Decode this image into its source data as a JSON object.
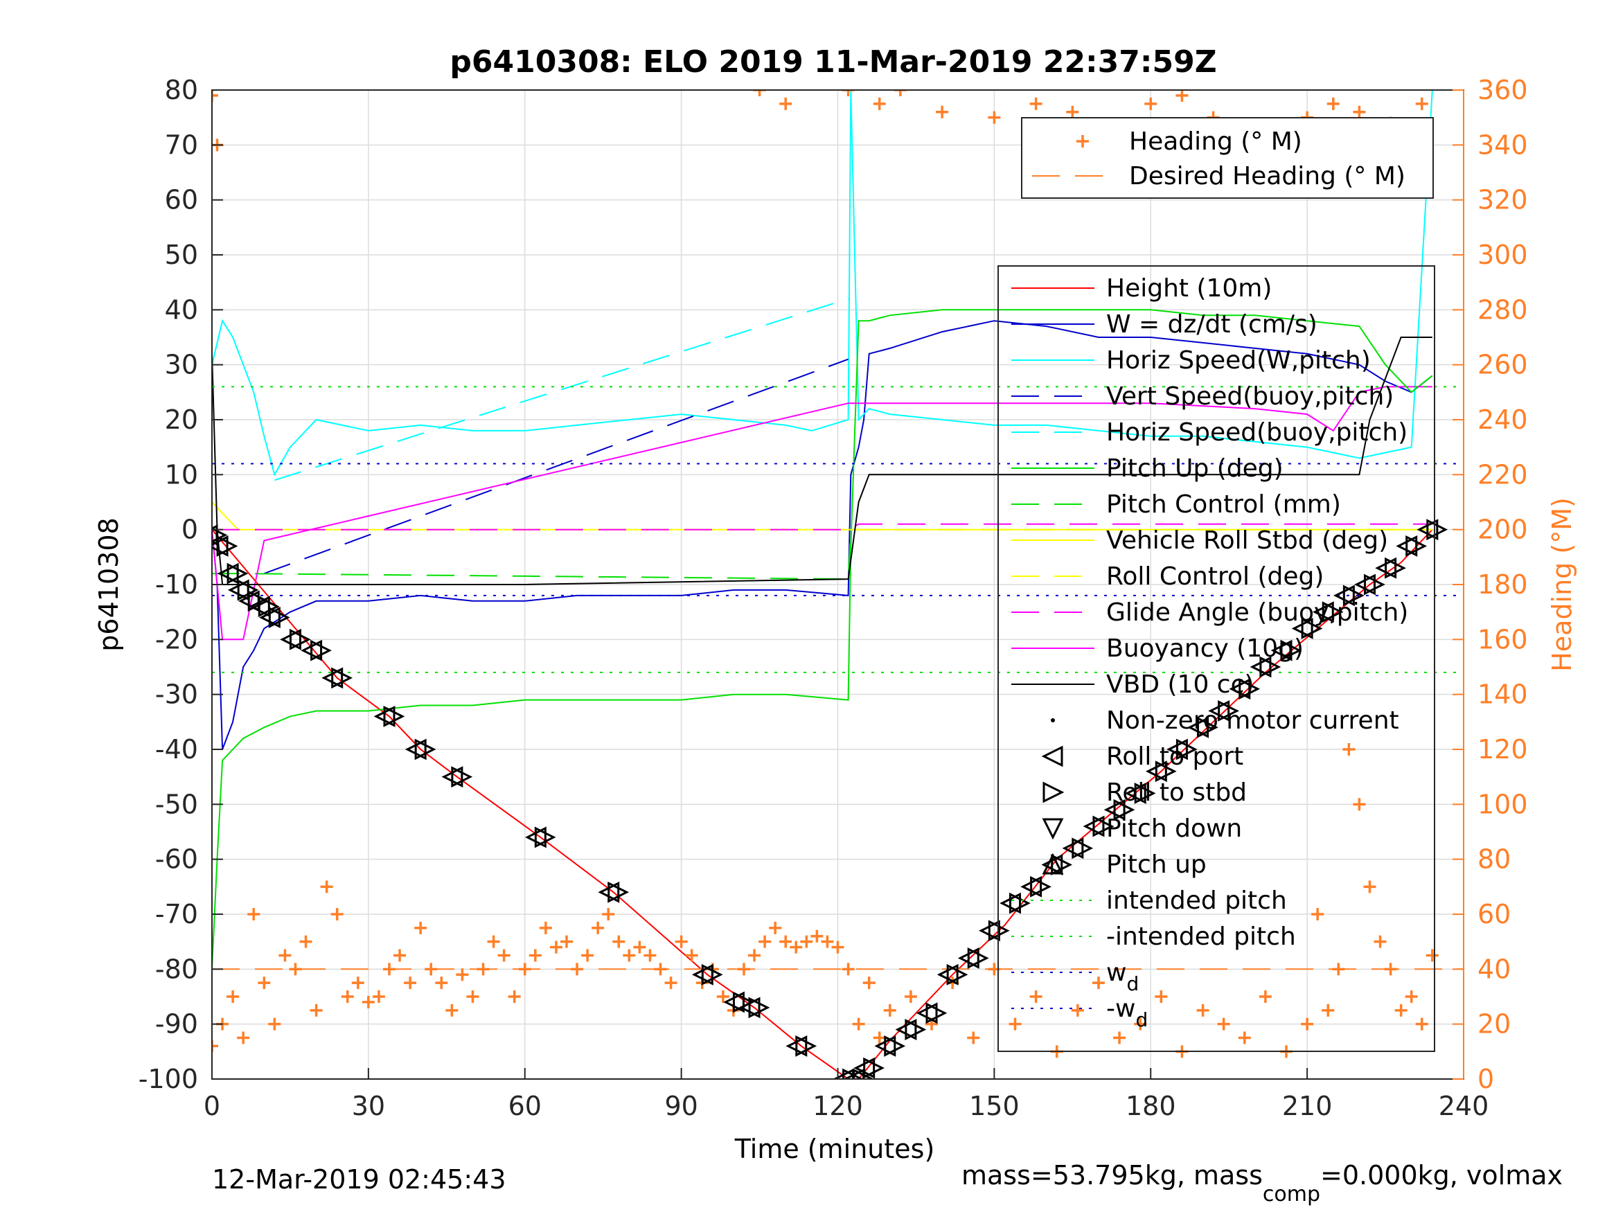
{
  "chart_data": {
    "type": "line",
    "title": "p6410308: ELO 2019 11-Mar-2019 22:37:59Z",
    "xlabel": "Time (minutes)",
    "ylabel": "p6410308",
    "y2label": "Heading (°M)",
    "xlim": [
      0,
      240
    ],
    "ylim": [
      -100,
      80
    ],
    "y2lim": [
      0,
      360
    ],
    "xticks": [
      "0",
      "30",
      "60",
      "90",
      "120",
      "150",
      "180",
      "210",
      "240"
    ],
    "yticks": [
      "80",
      "70",
      "60",
      "50",
      "40",
      "30",
      "20",
      "10",
      "0",
      "-10",
      "-20",
      "-30",
      "-40",
      "-50",
      "-60",
      "-70",
      "-80",
      "-90",
      "-100"
    ],
    "y2ticks": [
      "360",
      "340",
      "320",
      "300",
      "280",
      "260",
      "240",
      "220",
      "200",
      "180",
      "160",
      "140",
      "120",
      "100",
      "80",
      "60",
      "40",
      "20",
      "0"
    ],
    "grid": true,
    "legend_heading": [
      {
        "name": "Heading (° M)",
        "color": "#ff7f27",
        "style": "plus"
      },
      {
        "name": "Desired Heading (° M)",
        "color": "#ff7f27",
        "style": "dashed"
      }
    ],
    "legend": [
      {
        "name": "Height (10m)",
        "color": "#ff0000",
        "style": "solid"
      },
      {
        "name": "W = dz/dt (cm/s)",
        "color": "#0000cc",
        "style": "solid"
      },
      {
        "name": "Horiz Speed(W,pitch)",
        "color": "#00ffff",
        "style": "solid"
      },
      {
        "name": "Vert Speed(buoy,pitch)",
        "color": "#0000cc",
        "style": "dashed"
      },
      {
        "name": "Horiz Speed(buoy,pitch)",
        "color": "#00ffff",
        "style": "dashed"
      },
      {
        "name": "Pitch Up (deg)",
        "color": "#00e000",
        "style": "solid"
      },
      {
        "name": "Pitch Control (mm)",
        "color": "#00e000",
        "style": "dashed"
      },
      {
        "name": "Vehicle Roll Stbd (deg)",
        "color": "#ffff00",
        "style": "solid"
      },
      {
        "name": "Roll Control (deg)",
        "color": "#ffff00",
        "style": "dashed"
      },
      {
        "name": "Glide Angle (buoy,pitch)",
        "color": "#ff00ff",
        "style": "dashed"
      },
      {
        "name": "Buoyancy (10g)",
        "color": "#ff00ff",
        "style": "solid"
      },
      {
        "name": "VBD (10 cc)",
        "color": "#000000",
        "style": "solid"
      },
      {
        "name": "Non-zero motor current",
        "color": "#000000",
        "style": "dot"
      },
      {
        "name": "Roll to port",
        "color": "#000000",
        "style": "tri-left"
      },
      {
        "name": "Roll to stbd",
        "color": "#000000",
        "style": "tri-right"
      },
      {
        "name": "Pitch down",
        "color": "#000000",
        "style": "tri-down"
      },
      {
        "name": "Pitch up",
        "color": "#000000",
        "style": "tri-up"
      },
      {
        "name": "intended pitch",
        "color": "#00e000",
        "style": "dotted"
      },
      {
        "name": "-intended pitch",
        "color": "#00e000",
        "style": "dotted"
      },
      {
        "name_main": "w",
        "name_sub": "d",
        "color": "#0000cc",
        "style": "dotted"
      },
      {
        "name_main": "-w",
        "name_sub": "d",
        "color": "#0000cc",
        "style": "dotted"
      }
    ],
    "series": [
      {
        "name": "Height (10m)",
        "x": [
          0,
          24,
          34,
          40,
          47,
          63,
          77,
          95,
          104,
          113,
          122,
          124,
          130,
          142,
          152,
          162,
          172,
          182,
          192,
          202,
          212,
          222,
          228,
          234
        ],
        "y": [
          0,
          -27,
          -34,
          -40,
          -45,
          -56,
          -66,
          -81,
          -87,
          -94,
          -100,
          -100,
          -93,
          -81,
          -72,
          -60,
          -52,
          -44,
          -35,
          -26,
          -18,
          -10,
          -6,
          0
        ]
      },
      {
        "name": "W = dz/dt (cm/s)",
        "x": [
          0,
          1,
          2,
          4,
          6,
          8,
          10,
          15,
          20,
          30,
          40,
          50,
          60,
          70,
          80,
          90,
          100,
          110,
          122,
          122.5,
          124,
          125,
          126,
          130,
          140,
          150,
          160,
          170,
          180,
          190,
          200,
          210,
          220,
          225,
          230,
          234
        ],
        "y": [
          0,
          -10,
          -40,
          -35,
          -25,
          -22,
          -18,
          -15,
          -13,
          -13,
          -12,
          -13,
          -13,
          -12,
          -12,
          -12,
          -11,
          -11,
          -12,
          10,
          15,
          20,
          32,
          33,
          36,
          38,
          37,
          35,
          35,
          34,
          33,
          32,
          30,
          27,
          25,
          28
        ]
      },
      {
        "name": "Horiz Speed(W,pitch)",
        "x": [
          0,
          2,
          4,
          6,
          8,
          10,
          12,
          15,
          20,
          30,
          40,
          50,
          60,
          70,
          80,
          90,
          100,
          110,
          115,
          122,
          122.5,
          124,
          126,
          130,
          140,
          150,
          160,
          170,
          180,
          190,
          200,
          210,
          220,
          225,
          230,
          234
        ],
        "y": [
          30,
          38,
          35,
          30,
          25,
          17,
          10,
          15,
          20,
          18,
          19,
          18,
          18,
          19,
          20,
          21,
          20,
          19,
          18,
          20,
          80,
          20,
          22,
          21,
          20,
          19,
          19,
          18,
          17,
          17,
          16,
          15,
          13,
          14,
          15,
          80
        ]
      },
      {
        "name": "Vert Speed(buoy,pitch)",
        "x": [
          10,
          122
        ],
        "y": [
          -8,
          31
        ]
      },
      {
        "name": "Horiz Speed(buoy,pitch)",
        "x": [
          12,
          122
        ],
        "y": [
          9,
          42
        ]
      },
      {
        "name": "Pitch Up (deg)",
        "x": [
          0,
          1,
          2,
          4,
          6,
          8,
          10,
          15,
          20,
          30,
          40,
          50,
          60,
          70,
          80,
          90,
          100,
          110,
          122,
          122.5,
          124,
          126,
          130,
          140,
          150,
          160,
          170,
          180,
          190,
          200,
          210,
          220,
          225,
          230,
          234
        ],
        "y": [
          -80,
          -60,
          -42,
          -40,
          -38,
          -37,
          -36,
          -34,
          -33,
          -33,
          -32,
          -32,
          -31,
          -31,
          -31,
          -31,
          -30,
          -30,
          -31,
          -3,
          38,
          38,
          39,
          40,
          40,
          40,
          40,
          40,
          39,
          39,
          38,
          37,
          30,
          25,
          28
        ]
      },
      {
        "name": "Pitch Control (mm)",
        "x": [
          0,
          3,
          5,
          122,
          122.5,
          126,
          234
        ],
        "y": [
          -8,
          -8,
          -8,
          -9,
          0,
          0,
          0
        ]
      },
      {
        "name": "Vehicle Roll Stbd (deg)",
        "x": [
          0,
          5,
          10,
          20,
          40,
          60,
          80,
          100,
          120,
          130,
          140,
          150,
          160,
          170,
          180,
          190,
          200,
          210,
          220,
          230,
          234
        ],
        "y": [
          5,
          0,
          0,
          0,
          0,
          0,
          0,
          0,
          0,
          0,
          0,
          0,
          0,
          0,
          0,
          0,
          0,
          0,
          0,
          0,
          0
        ]
      },
      {
        "name": "Roll Control (deg)",
        "x": [
          0,
          234
        ],
        "y": [
          0,
          0
        ]
      },
      {
        "name": "Glide Angle (buoy,pitch)",
        "x": [
          0,
          122,
          124,
          234
        ],
        "y": [
          0,
          0,
          1,
          1
        ]
      },
      {
        "name": "Buoyancy (10g)",
        "x": [
          0,
          2,
          6,
          10,
          122,
          124,
          150,
          180,
          200,
          210,
          215,
          220,
          225,
          230,
          234
        ],
        "y": [
          0,
          -20,
          -20,
          -2,
          23,
          23,
          23,
          23,
          22,
          21,
          18,
          25,
          26,
          26,
          26
        ]
      },
      {
        "name": "VBD (10 cc)",
        "x": [
          0,
          1,
          2,
          5,
          60,
          122,
          124,
          126,
          150,
          200,
          220,
          222,
          228,
          234
        ],
        "y": [
          32,
          0,
          -10,
          -10,
          -10,
          -9,
          5,
          10,
          10,
          10,
          10,
          20,
          35,
          35
        ]
      },
      {
        "name": "intended pitch",
        "x": [
          0,
          240
        ],
        "y": [
          26,
          26
        ]
      },
      {
        "name": "-intended pitch",
        "x": [
          0,
          240
        ],
        "y": [
          -26,
          -26
        ]
      },
      {
        "name": "w_d",
        "x": [
          0,
          240
        ],
        "y": [
          12,
          12
        ]
      },
      {
        "name": "-w_d",
        "x": [
          0,
          240
        ],
        "y": [
          -12,
          -12
        ]
      },
      {
        "name": "Desired Heading (° M)",
        "axis": "y2",
        "x": [
          0,
          240
        ],
        "y": [
          40,
          40
        ]
      }
    ],
    "heading_points": {
      "x": [
        0,
        2,
        4,
        6,
        8,
        10,
        12,
        14,
        16,
        18,
        20,
        22,
        24,
        26,
        28,
        30,
        32,
        34,
        36,
        38,
        40,
        42,
        44,
        46,
        48,
        50,
        52,
        54,
        56,
        58,
        60,
        62,
        64,
        66,
        68,
        70,
        72,
        74,
        76,
        78,
        80,
        82,
        84,
        86,
        88,
        90,
        92,
        94,
        96,
        98,
        100,
        102,
        104,
        106,
        108,
        110,
        112,
        114,
        116,
        118,
        120,
        122,
        124,
        126,
        128,
        130,
        134,
        138,
        142,
        146,
        150,
        154,
        158,
        162,
        166,
        170,
        174,
        178,
        182,
        186,
        190,
        194,
        198,
        202,
        206,
        210,
        212,
        214,
        216,
        218,
        220,
        222,
        224,
        226,
        228,
        230,
        232,
        234
      ],
      "y": [
        12,
        20,
        30,
        15,
        60,
        35,
        20,
        45,
        40,
        50,
        25,
        70,
        60,
        30,
        35,
        28,
        30,
        40,
        45,
        35,
        55,
        40,
        35,
        25,
        38,
        30,
        40,
        50,
        45,
        30,
        40,
        45,
        55,
        48,
        50,
        40,
        45,
        55,
        60,
        50,
        45,
        48,
        45,
        40,
        35,
        50,
        45,
        35,
        40,
        30,
        25,
        40,
        45,
        50,
        55,
        50,
        48,
        50,
        52,
        50,
        48,
        40,
        20,
        35,
        15,
        25,
        30,
        20,
        35,
        15,
        40,
        20,
        30,
        10,
        25,
        35,
        15,
        20,
        30,
        10,
        25,
        20,
        15,
        30,
        10,
        20,
        60,
        25,
        40,
        120,
        100,
        70,
        50,
        40,
        25,
        30,
        20,
        45
      ]
    },
    "heading_points_upper": {
      "x": [
        0,
        1,
        105,
        110,
        122,
        128,
        132,
        140,
        150,
        158,
        165,
        172,
        180,
        186,
        192,
        200,
        206,
        210,
        215,
        220,
        226,
        232
      ],
      "y": [
        358,
        340,
        360,
        355,
        360,
        355,
        360,
        352,
        350,
        355,
        352,
        345,
        355,
        358,
        350,
        340,
        330,
        350,
        355,
        352,
        348,
        355
      ]
    },
    "markers": {
      "x": [
        0,
        2,
        4,
        6,
        8,
        10,
        12,
        16,
        20,
        24,
        34,
        40,
        47,
        63,
        77,
        95,
        101,
        104,
        113,
        122,
        124,
        126,
        130,
        134,
        138,
        142,
        146,
        150,
        154,
        158,
        162,
        166,
        170,
        174,
        178,
        182,
        186,
        190,
        194,
        198,
        202,
        206,
        210,
        214,
        218,
        222,
        226,
        230,
        234
      ],
      "y": [
        -1,
        -3,
        -8,
        -11,
        -13,
        -14,
        -16,
        -20,
        -22,
        -27,
        -34,
        -40,
        -45,
        -56,
        -66,
        -81,
        -86,
        -87,
        -94,
        -100,
        -100,
        -98,
        -94,
        -91,
        -88,
        -81,
        -78,
        -73,
        -68,
        -65,
        -61,
        -58,
        -54,
        -51,
        -48,
        -44,
        -40,
        -36,
        -33,
        -29,
        -25,
        -22,
        -18,
        -15,
        -12,
        -10,
        -7,
        -3,
        0
      ]
    },
    "footer_left": "12-Mar-2019 02:45:43",
    "footer_right_main": "mass=53.795kg, mass",
    "footer_right_sub": "comp",
    "footer_right_tail": "=0.000kg, volmax"
  }
}
